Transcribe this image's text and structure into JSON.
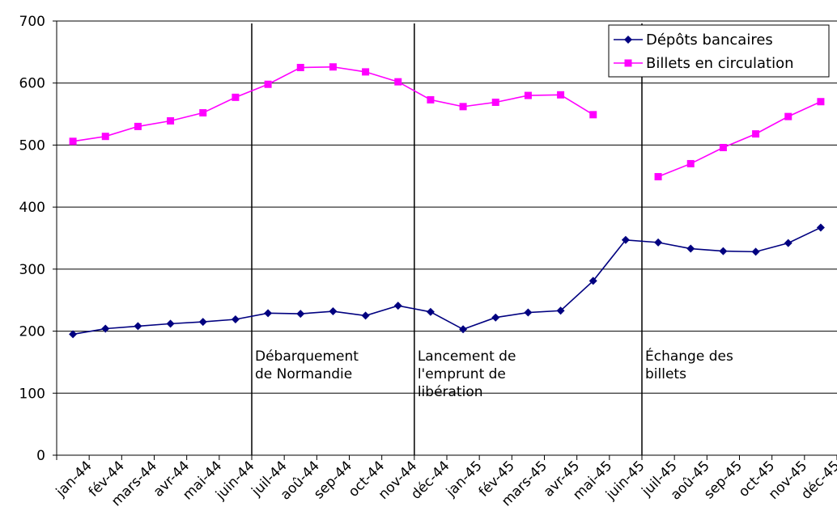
{
  "chart_data": {
    "type": "line",
    "title": "",
    "xlabel": "",
    "ylabel": "",
    "ylim": [
      0,
      700
    ],
    "yticks": [
      "0",
      "100",
      "200",
      "300",
      "400",
      "500",
      "600",
      "700"
    ],
    "grid": "horizontal",
    "legend_position": "top-right",
    "categories": [
      "jan-44",
      "fév-44",
      "mars-44",
      "avr-44",
      "mai-44",
      "juin-44",
      "juil-44",
      "aoû-44",
      "sep-44",
      "oct-44",
      "nov-44",
      "déc-44",
      "jan-45",
      "fév-45",
      "mars-45",
      "avr-45",
      "mai-45",
      "juin-45",
      "juil-45",
      "aoû-45",
      "sep-45",
      "oct-45",
      "nov-45",
      "déc-45"
    ],
    "series": [
      {
        "name": "Dépôts bancaires",
        "color": "#000080",
        "marker": "diamond",
        "values": [
          195,
          204,
          208,
          212,
          215,
          219,
          229,
          228,
          232,
          225,
          241,
          231,
          203,
          222,
          230,
          233,
          281,
          347,
          343,
          333,
          329,
          328,
          342,
          367
        ]
      },
      {
        "name": "Billets en circulation",
        "color": "#FF00FF",
        "marker": "square",
        "values": [
          506,
          514,
          530,
          539,
          552,
          577,
          598,
          625,
          626,
          618,
          602,
          573,
          562,
          569,
          580,
          581,
          549,
          null,
          449,
          470,
          496,
          518,
          546,
          570
        ]
      }
    ],
    "annotations": [
      {
        "lines": [
          "Débarquement",
          "de Normandie"
        ],
        "at_index": 5.5
      },
      {
        "lines": [
          "Lancement de",
          "l'emprunt de",
          "libération"
        ],
        "at_index": 10.5
      },
      {
        "lines": [
          "Échange des",
          "billets"
        ],
        "at_index": 17.5
      }
    ]
  }
}
